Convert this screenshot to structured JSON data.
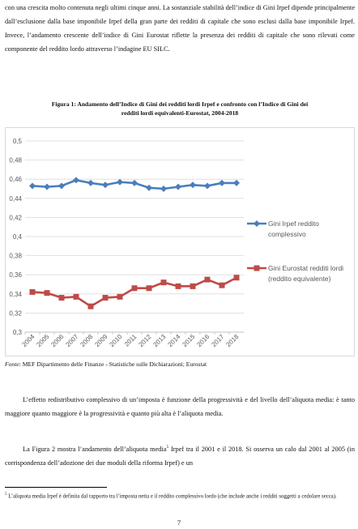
{
  "paragraphs": {
    "p1": "con una crescita molto contenuta negli ultimi cinque anni. La sostanziale stabilità dell’indice di Gini Irpef dipende principalmente dall’esclusione dalla base imponibile Irpef della gran parte dei redditi di capitale che sono esclusi dalla base imponibile Irpef. Invece, l’andamento crescente dell’indice di Gini Eurostat riflette la presenza dei redditi di capitale che sono rilevati come componente del reddito lordo attraverso l’indagine EU SILC.",
    "p2": "L’effetto redistributivo complessivo di un’imposta è funzione della progressività e del livello dell’aliquota media: è tanto maggiore quanto maggiore è la progressività e quanto più alta è l’aliquota media.",
    "p3_before": "La Figura 2 mostra l’andamento dell’aliquota media",
    "p3_sup": "5",
    "p3_after": " Irpef tra il 2001 e il 2018. Si osserva un calo dal 2001 al 2005 (in corrispondenza dell’adozione dei due moduli della riforma Irpef) e un"
  },
  "figure": {
    "caption_line1": "Figura 1: Andamento dell’Indice di Gini dei redditi lordi Irpef e confronto con l’Indice di Gini dei",
    "caption_line2": "redditi lordi equivalenti-Eurostat, 2004-2018"
  },
  "source": {
    "label": "Fonte",
    "text": ": MEF Dipartimento delle Finanze - Statistiche sulle Dichiarazioni; Eurostat"
  },
  "footnote": {
    "marker": "5",
    "text": " L’aliquota media Irpef è definita dal rapporto tra l’imposta netta e il reddito complessivo lordo (che include anche i redditi soggetti a cedolare secca)."
  },
  "page_number": "7",
  "chart_data": {
    "type": "line",
    "categories": [
      "2004",
      "2005",
      "2006",
      "2007",
      "2008",
      "2009",
      "2010",
      "2011",
      "2012",
      "2013",
      "2014",
      "2015",
      "2016",
      "2017",
      "2018"
    ],
    "ylim": [
      0.3,
      0.5
    ],
    "yticks": [
      "0,3",
      "0,32",
      "0,34",
      "0,36",
      "0,38",
      "0,4",
      "0,42",
      "0,44",
      "0,46",
      "0,48",
      "0,5"
    ],
    "grid": true,
    "legend_position": "right",
    "series": [
      {
        "name_lines": [
          "Gini Irpef reddito",
          "complessivo"
        ],
        "color": "#4a7ebb",
        "marker": "diamond",
        "values": [
          0.453,
          0.452,
          0.453,
          0.459,
          0.456,
          0.454,
          0.457,
          0.456,
          0.451,
          0.45,
          0.452,
          0.454,
          0.453,
          0.456,
          0.456
        ]
      },
      {
        "name_lines": [
          "Gini Eurostat redditi lordi",
          "(reddito equivalente)"
        ],
        "color": "#be4b48",
        "marker": "square",
        "values": [
          0.342,
          0.341,
          0.336,
          0.337,
          0.327,
          0.336,
          0.337,
          0.346,
          0.346,
          0.352,
          0.348,
          0.348,
          0.355,
          0.349,
          0.357
        ]
      }
    ]
  }
}
